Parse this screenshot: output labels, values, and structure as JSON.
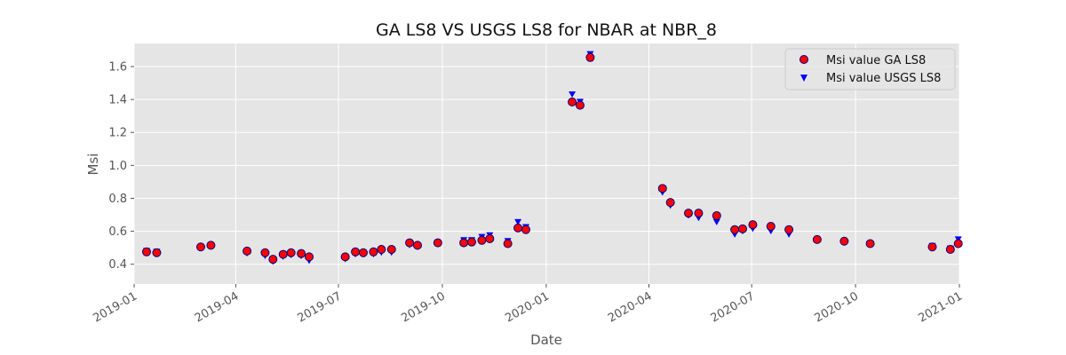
{
  "chart_data": {
    "type": "scatter",
    "title": "GA LS8 VS USGS LS8 for NBAR at NBR_8",
    "xlabel": "Date",
    "ylabel": "Msi",
    "xlim": [
      "2019-01-01",
      "2021-01-01"
    ],
    "ylim": [
      0.28,
      1.74
    ],
    "x_ticks": [
      "2019-01",
      "2019-04",
      "2019-07",
      "2019-10",
      "2020-01",
      "2020-04",
      "2020-07",
      "2020-10",
      "2021-01"
    ],
    "y_ticks": [
      0.4,
      0.6,
      0.8,
      1.0,
      1.2,
      1.4,
      1.6
    ],
    "y_tick_labels": [
      "0.4",
      "0.6",
      "0.8",
      "1.0",
      "1.2",
      "1.4",
      "1.6"
    ],
    "grid": true,
    "legend_position": "top-right",
    "series": [
      {
        "name": "Msi value GA LS8",
        "marker": "circle",
        "color": "#ff0000",
        "edge_color": "#000080",
        "points": [
          [
            "2019-01-12",
            0.475
          ],
          [
            "2019-01-21",
            0.47
          ],
          [
            "2019-03-01",
            0.505
          ],
          [
            "2019-03-10",
            0.515
          ],
          [
            "2019-04-11",
            0.48
          ],
          [
            "2019-04-27",
            0.47
          ],
          [
            "2019-05-04",
            0.43
          ],
          [
            "2019-05-13",
            0.46
          ],
          [
            "2019-05-20",
            0.47
          ],
          [
            "2019-05-29",
            0.465
          ],
          [
            "2019-06-05",
            0.445
          ],
          [
            "2019-07-07",
            0.445
          ],
          [
            "2019-07-16",
            0.475
          ],
          [
            "2019-07-23",
            0.47
          ],
          [
            "2019-08-01",
            0.475
          ],
          [
            "2019-08-08",
            0.49
          ],
          [
            "2019-08-17",
            0.49
          ],
          [
            "2019-09-02",
            0.53
          ],
          [
            "2019-09-09",
            0.515
          ],
          [
            "2019-09-27",
            0.53
          ],
          [
            "2019-10-20",
            0.53
          ],
          [
            "2019-10-27",
            0.535
          ],
          [
            "2019-11-05",
            0.545
          ],
          [
            "2019-11-12",
            0.555
          ],
          [
            "2019-11-28",
            0.525
          ],
          [
            "2019-12-07",
            0.62
          ],
          [
            "2019-12-14",
            0.61
          ],
          [
            "2020-01-24",
            1.385
          ],
          [
            "2020-01-31",
            1.365
          ],
          [
            "2020-02-09",
            1.655
          ],
          [
            "2020-04-13",
            0.86
          ],
          [
            "2020-04-20",
            0.775
          ],
          [
            "2020-05-06",
            0.71
          ],
          [
            "2020-05-15",
            0.71
          ],
          [
            "2020-05-31",
            0.695
          ],
          [
            "2020-06-16",
            0.61
          ],
          [
            "2020-06-23",
            0.615
          ],
          [
            "2020-07-02",
            0.64
          ],
          [
            "2020-07-18",
            0.63
          ],
          [
            "2020-08-03",
            0.61
          ],
          [
            "2020-08-28",
            0.55
          ],
          [
            "2020-09-21",
            0.54
          ],
          [
            "2020-10-14",
            0.525
          ],
          [
            "2020-12-08",
            0.505
          ],
          [
            "2020-12-24",
            0.49
          ],
          [
            "2020-12-31",
            0.525
          ]
        ]
      },
      {
        "name": "Msi value USGS LS8",
        "marker": "triangle-down",
        "color": "#0000ff",
        "points": [
          [
            "2019-01-12",
            0.48
          ],
          [
            "2019-01-21",
            0.475
          ],
          [
            "2019-03-01",
            0.5
          ],
          [
            "2019-03-10",
            0.51
          ],
          [
            "2019-04-11",
            0.465
          ],
          [
            "2019-04-27",
            0.45
          ],
          [
            "2019-05-04",
            0.415
          ],
          [
            "2019-05-13",
            0.445
          ],
          [
            "2019-05-20",
            0.455
          ],
          [
            "2019-05-29",
            0.45
          ],
          [
            "2019-06-05",
            0.42
          ],
          [
            "2019-07-07",
            0.43
          ],
          [
            "2019-07-16",
            0.46
          ],
          [
            "2019-07-23",
            0.46
          ],
          [
            "2019-08-01",
            0.46
          ],
          [
            "2019-08-08",
            0.47
          ],
          [
            "2019-08-17",
            0.47
          ],
          [
            "2019-09-02",
            0.515
          ],
          [
            "2019-09-09",
            0.505
          ],
          [
            "2019-09-27",
            0.525
          ],
          [
            "2019-10-20",
            0.545
          ],
          [
            "2019-10-27",
            0.545
          ],
          [
            "2019-11-05",
            0.565
          ],
          [
            "2019-11-12",
            0.575
          ],
          [
            "2019-11-28",
            0.54
          ],
          [
            "2019-12-07",
            0.655
          ],
          [
            "2019-12-14",
            0.625
          ],
          [
            "2020-01-24",
            1.43
          ],
          [
            "2020-01-31",
            1.385
          ],
          [
            "2020-02-09",
            1.675
          ],
          [
            "2020-04-13",
            0.835
          ],
          [
            "2020-04-20",
            0.755
          ],
          [
            "2020-05-06",
            0.695
          ],
          [
            "2020-05-15",
            0.68
          ],
          [
            "2020-05-31",
            0.655
          ],
          [
            "2020-06-16",
            0.58
          ],
          [
            "2020-06-23",
            0.6
          ],
          [
            "2020-07-02",
            0.615
          ],
          [
            "2020-07-18",
            0.6
          ],
          [
            "2020-08-03",
            0.58
          ],
          [
            "2020-08-28",
            0.545
          ],
          [
            "2020-09-21",
            0.535
          ],
          [
            "2020-10-14",
            0.525
          ],
          [
            "2020-12-08",
            0.51
          ],
          [
            "2020-12-24",
            0.495
          ],
          [
            "2020-12-31",
            0.55
          ]
        ]
      }
    ]
  },
  "colors": {
    "plot_background": "#e5e5e5",
    "grid": "#ffffff",
    "text": "#555555"
  }
}
